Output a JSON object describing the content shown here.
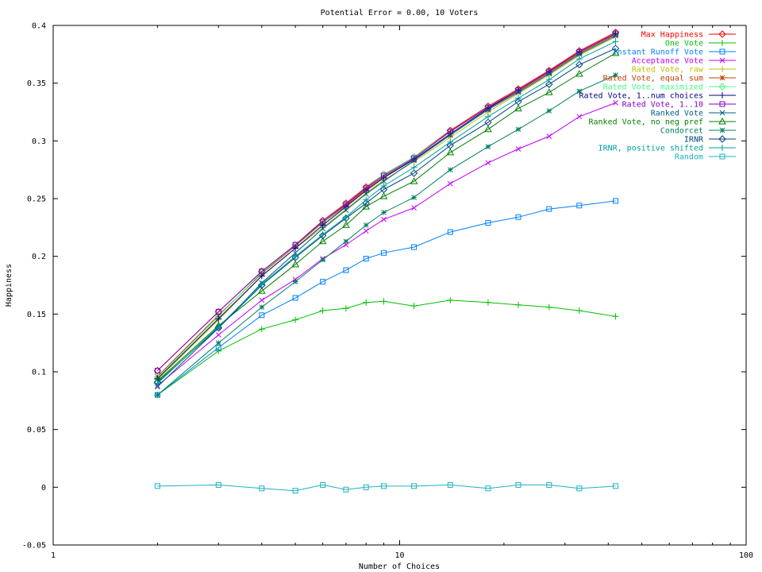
{
  "chart_data": {
    "type": "line",
    "title": "Potential Error = 0.00, 10 Voters",
    "xlabel": "Number of Choices",
    "ylabel": "Happiness",
    "xscale": "log",
    "xlim": [
      1,
      100
    ],
    "ylim": [
      -0.05,
      0.4
    ],
    "x_ticks": [
      1,
      10,
      100
    ],
    "y_ticks": [
      -0.05,
      0,
      0.05,
      0.1,
      0.15,
      0.2,
      0.25,
      0.3,
      0.35,
      0.4
    ],
    "y_tick_labels": [
      "-0.05",
      "0",
      "0.05",
      "0.1",
      "0.15",
      "0.2",
      "0.25",
      "0.3",
      "0.35",
      "0.4"
    ],
    "x_tick_labels": [
      "1",
      "10",
      "100"
    ],
    "legend_position": "top-right",
    "grid": false,
    "x": [
      2,
      3,
      4,
      5,
      6,
      7,
      8,
      9,
      11,
      14,
      18,
      22,
      27,
      33,
      42
    ],
    "series": [
      {
        "name": "Max Happiness",
        "color": "#ff0000",
        "marker": "diamond",
        "values": [
          0.101,
          0.152,
          0.187,
          0.21,
          0.231,
          0.246,
          0.26,
          0.271,
          0.286,
          0.309,
          0.33,
          0.345,
          0.361,
          0.378,
          0.394
        ]
      },
      {
        "name": "One Vote",
        "color": "#00c000",
        "marker": "plus",
        "values": [
          0.08,
          0.118,
          0.137,
          0.145,
          0.153,
          0.155,
          0.16,
          0.161,
          0.157,
          0.162,
          0.16,
          0.158,
          0.156,
          0.153,
          0.148
        ]
      },
      {
        "name": "Instant Runoff Vote",
        "color": "#0080ff",
        "marker": "square",
        "values": [
          0.08,
          0.121,
          0.149,
          0.164,
          0.178,
          0.188,
          0.198,
          0.203,
          0.208,
          0.221,
          0.229,
          0.234,
          0.241,
          0.244,
          0.248
        ]
      },
      {
        "name": "Acceptance Vote",
        "color": "#c000ff",
        "marker": "cross",
        "values": [
          0.088,
          0.132,
          0.162,
          0.18,
          0.198,
          0.21,
          0.222,
          0.232,
          0.242,
          0.263,
          0.281,
          0.293,
          0.304,
          0.321,
          0.333
        ]
      },
      {
        "name": "Rated Vote, raw",
        "color": "#c0c000",
        "marker": "plus",
        "values": [
          0.093,
          0.145,
          0.183,
          0.207,
          0.225,
          0.241,
          0.255,
          0.266,
          0.282,
          0.303,
          0.325,
          0.341,
          0.357,
          0.374,
          0.39
        ]
      },
      {
        "name": "Rated Vote, equal sum",
        "color": "#c04000",
        "marker": "star",
        "values": [
          0.096,
          0.149,
          0.185,
          0.209,
          0.229,
          0.244,
          0.258,
          0.269,
          0.284,
          0.306,
          0.328,
          0.343,
          0.359,
          0.376,
          0.392
        ]
      },
      {
        "name": "Rated Vote, maximized",
        "color": "#40ff80",
        "marker": "diamond",
        "values": [
          0.095,
          0.148,
          0.186,
          0.21,
          0.229,
          0.245,
          0.259,
          0.271,
          0.286,
          0.308,
          0.329,
          0.344,
          0.36,
          0.377,
          0.393
        ]
      },
      {
        "name": "Rated Vote, 1..num choices",
        "color": "#000080",
        "marker": "plus",
        "values": [
          0.094,
          0.146,
          0.183,
          0.207,
          0.227,
          0.243,
          0.257,
          0.268,
          0.284,
          0.306,
          0.328,
          0.344,
          0.36,
          0.377,
          0.393
        ]
      },
      {
        "name": "Rated Vote, 1..10",
        "color": "#8000c0",
        "marker": "square",
        "values": [
          0.101,
          0.152,
          0.187,
          0.21,
          0.23,
          0.245,
          0.259,
          0.27,
          0.285,
          0.308,
          0.329,
          0.344,
          0.36,
          0.377,
          0.393
        ]
      },
      {
        "name": "Ranked Vote",
        "color": "#006080",
        "marker": "cross",
        "values": [
          0.087,
          0.138,
          0.177,
          0.203,
          0.224,
          0.24,
          0.254,
          0.265,
          0.283,
          0.305,
          0.327,
          0.342,
          0.358,
          0.375,
          0.391
        ]
      },
      {
        "name": "Ranked Vote, no neg pref",
        "color": "#008000",
        "marker": "triangle",
        "values": [
          0.092,
          0.14,
          0.17,
          0.193,
          0.213,
          0.227,
          0.243,
          0.252,
          0.265,
          0.29,
          0.31,
          0.328,
          0.342,
          0.358,
          0.376
        ]
      },
      {
        "name": "Condorcet",
        "color": "#008060",
        "marker": "star",
        "values": [
          0.08,
          0.125,
          0.156,
          0.178,
          0.197,
          0.213,
          0.227,
          0.238,
          0.251,
          0.275,
          0.295,
          0.31,
          0.326,
          0.343,
          0.357
        ]
      },
      {
        "name": "IRNR",
        "color": "#004080",
        "marker": "diamond",
        "values": [
          0.091,
          0.138,
          0.175,
          0.199,
          0.218,
          0.233,
          0.246,
          0.258,
          0.272,
          0.296,
          0.316,
          0.334,
          0.349,
          0.366,
          0.38
        ]
      },
      {
        "name": "IRNR, positive shifted",
        "color": "#00a0a0",
        "marker": "plus",
        "values": [
          0.09,
          0.139,
          0.176,
          0.2,
          0.219,
          0.234,
          0.249,
          0.261,
          0.277,
          0.299,
          0.321,
          0.337,
          0.353,
          0.371,
          0.386
        ]
      },
      {
        "name": "Random",
        "color": "#20b0c0",
        "marker": "square",
        "values": [
          0.001,
          0.002,
          -0.001,
          -0.003,
          0.002,
          -0.002,
          0.0,
          0.001,
          0.001,
          0.002,
          -0.001,
          0.002,
          0.002,
          -0.001,
          0.001
        ]
      }
    ]
  }
}
